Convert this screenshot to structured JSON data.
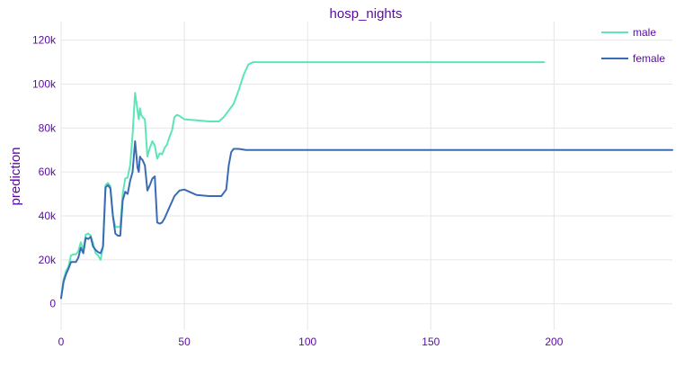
{
  "chart_data": {
    "type": "line",
    "title": "hosp_nights",
    "xlabel": "",
    "ylabel": "prediction",
    "xlim": [
      0,
      248
    ],
    "ylim": [
      -12000,
      126000
    ],
    "x_ticks": [
      0,
      50,
      100,
      150,
      200
    ],
    "x_tick_labels": [
      "0",
      "50",
      "100",
      "150",
      "200"
    ],
    "y_ticks": [
      0,
      20000,
      40000,
      60000,
      80000,
      100000,
      120000
    ],
    "y_tick_labels": [
      "0",
      "20k",
      "40k",
      "60k",
      "80k",
      "100k",
      "120k"
    ],
    "grid": true,
    "legend_position": "top-right",
    "series": [
      {
        "name": "male",
        "color": "#5ce6b8",
        "x": [
          0,
          1,
          2,
          3,
          4,
          5,
          6,
          7,
          8,
          9,
          10,
          11,
          12,
          13,
          14,
          15,
          16,
          17,
          18,
          19,
          20,
          21,
          22,
          23,
          24,
          25,
          26,
          27,
          28,
          29,
          30,
          31,
          31.5,
          32,
          32.5,
          33,
          34,
          35,
          36,
          37,
          38,
          39,
          40,
          41,
          42,
          43,
          44,
          45,
          46,
          47,
          48,
          50,
          55,
          60,
          64,
          66,
          68,
          70,
          72,
          74,
          76,
          78,
          80,
          85,
          100,
          150,
          196
        ],
        "y": [
          3000,
          11000,
          15000,
          17000,
          22000,
          22500,
          22500,
          24000,
          28000,
          24500,
          31500,
          32000,
          31000,
          27500,
          23000,
          22000,
          20000,
          26000,
          54000,
          55000,
          53500,
          40000,
          35000,
          35000,
          35000,
          50000,
          57000,
          57500,
          63000,
          77000,
          96000,
          88000,
          84000,
          89000,
          86000,
          85000,
          84000,
          67000,
          71000,
          74000,
          72000,
          66000,
          68500,
          68000,
          71000,
          72500,
          76000,
          79000,
          85000,
          86000,
          85500,
          84000,
          83500,
          83000,
          83000,
          85000,
          88000,
          91000,
          97000,
          104000,
          109000,
          110000,
          110000,
          110000,
          110000,
          110000,
          110000
        ]
      },
      {
        "name": "female",
        "color": "#3b6bb5",
        "x": [
          0,
          1,
          2,
          3,
          4,
          5,
          6,
          7,
          8,
          9,
          10,
          11,
          12,
          13,
          14,
          15,
          16,
          17,
          18,
          19,
          20,
          21,
          22,
          23,
          24,
          25,
          26,
          27,
          28,
          29,
          30,
          31,
          31.5,
          32,
          32.5,
          33,
          34,
          35,
          36,
          37,
          38,
          39,
          40,
          41,
          42,
          44,
          46,
          48,
          50,
          52,
          55,
          60,
          65,
          67,
          68,
          69,
          70,
          72,
          75,
          80,
          100,
          150,
          200,
          248
        ],
        "y": [
          2500,
          10000,
          13500,
          16000,
          19000,
          19000,
          19000,
          21000,
          25500,
          23000,
          30000,
          29500,
          30500,
          26000,
          24500,
          23500,
          23000,
          26000,
          53000,
          54000,
          52500,
          40000,
          32000,
          31000,
          31000,
          47000,
          51000,
          50000,
          56000,
          60000,
          74000,
          62000,
          60000,
          67000,
          66000,
          65500,
          63000,
          51500,
          54000,
          57000,
          58000,
          37000,
          36500,
          37000,
          39000,
          44000,
          49000,
          51500,
          52000,
          51000,
          49500,
          49000,
          49000,
          52000,
          63000,
          69000,
          70500,
          70500,
          70000,
          70000,
          70000,
          70000,
          70000,
          70000
        ]
      }
    ]
  }
}
